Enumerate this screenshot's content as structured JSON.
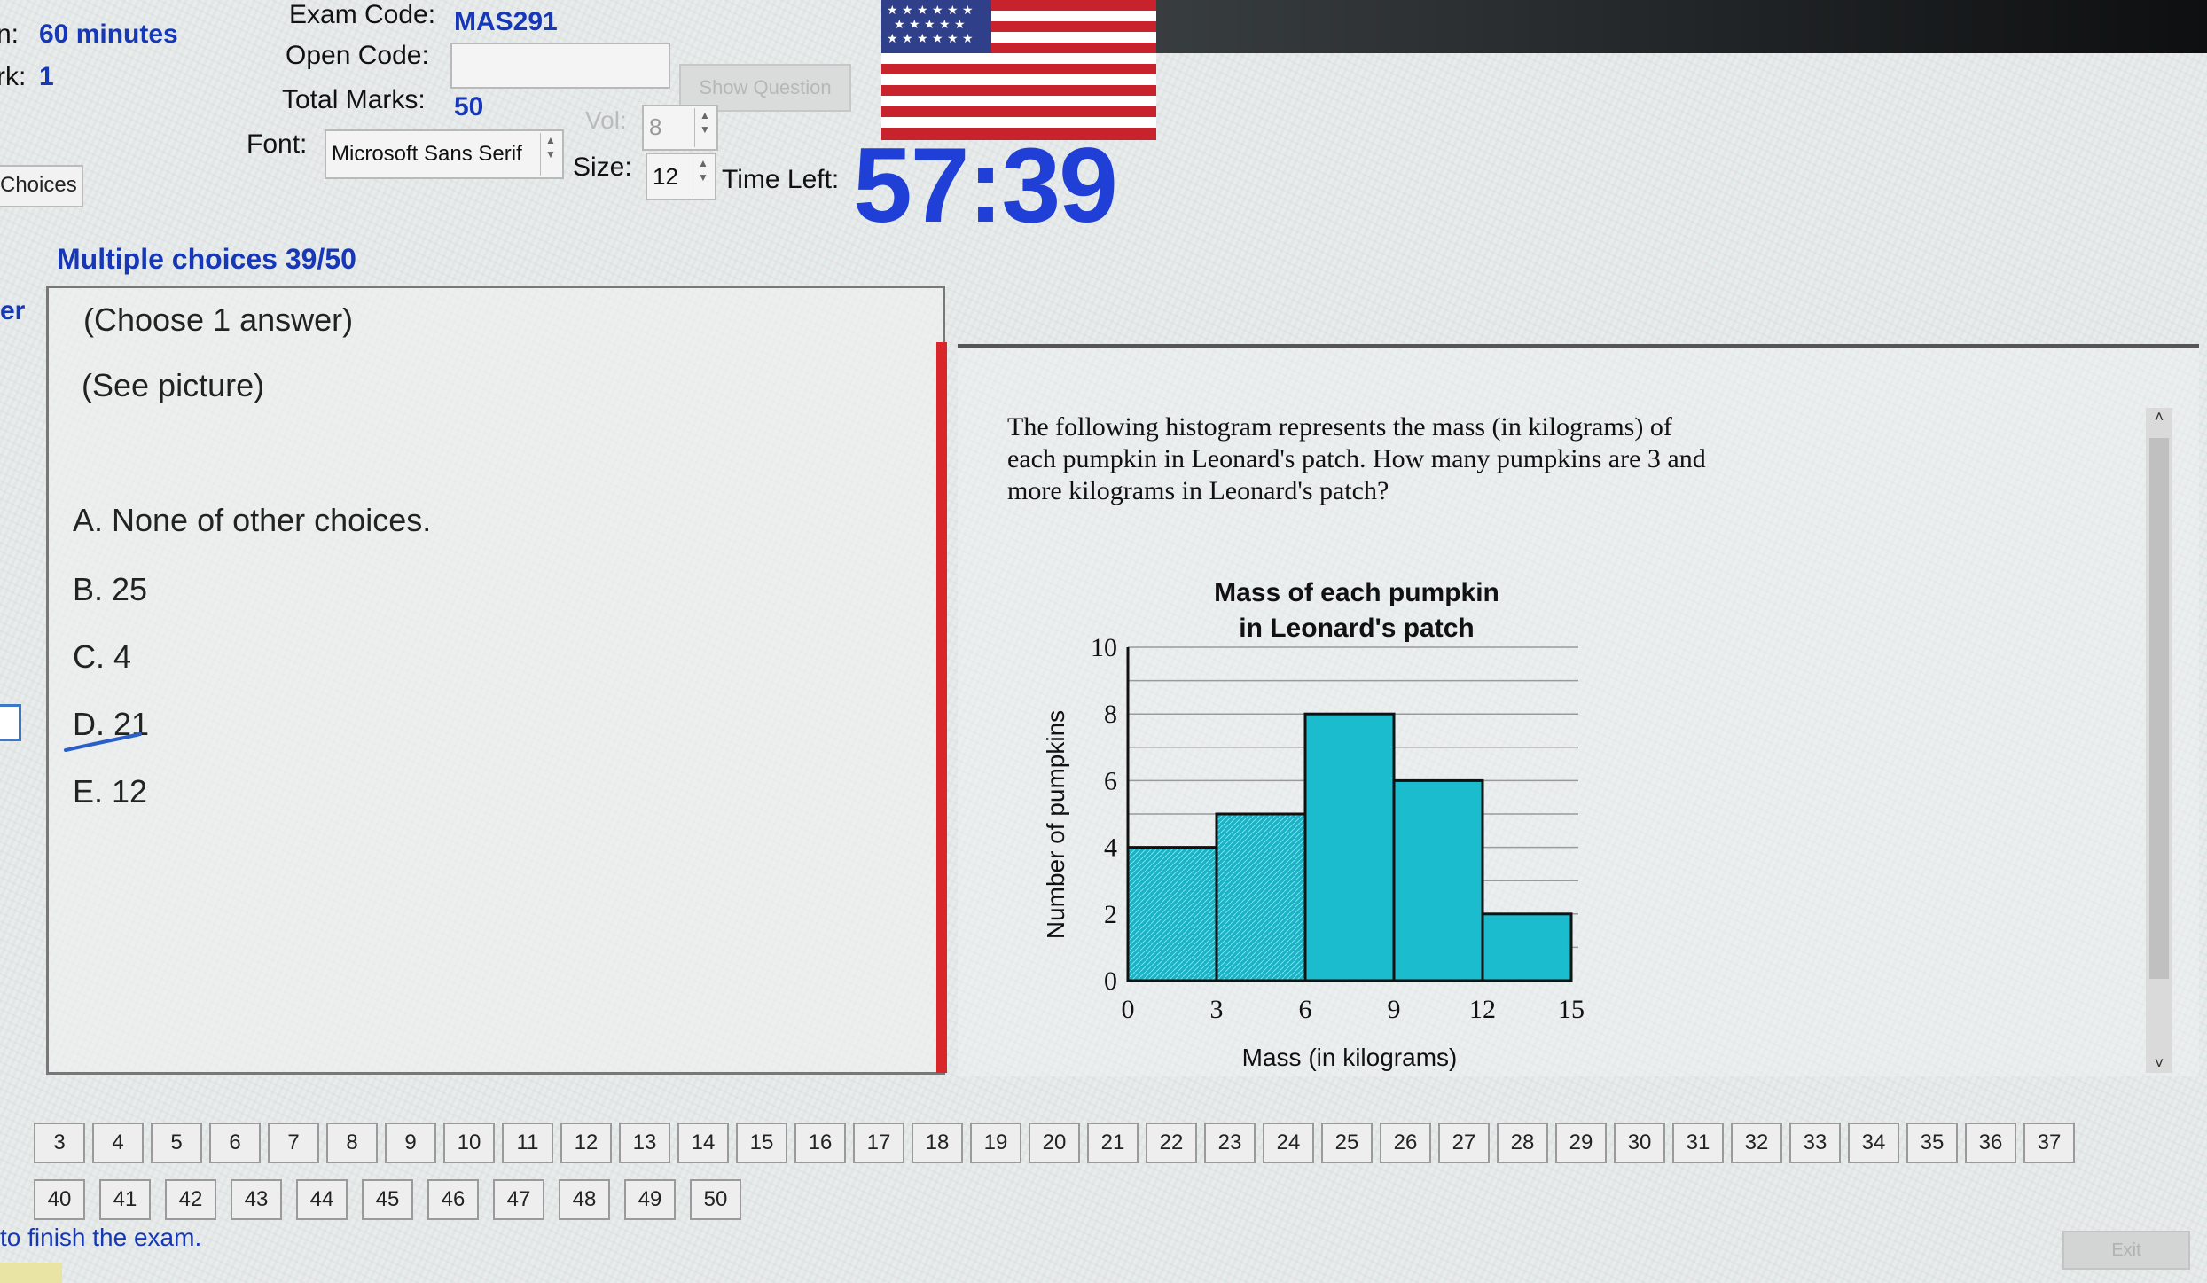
{
  "header": {
    "exam_code_label": "Exam Code:",
    "exam_code_value": "MAS291",
    "duration_label_partial": "n:",
    "duration_value": "60 minutes",
    "mark_label_partial": "rk:",
    "mark_value": "1",
    "open_code_label": "Open Code:",
    "open_code_value": "",
    "show_question_label": "Show Question",
    "total_marks_label": "Total Marks:",
    "total_marks_value": "50",
    "vol_label": "Vol:",
    "vol_value": "8",
    "font_label": "Font:",
    "font_value": "Microsoft Sans Serif",
    "size_label": "Size:",
    "size_value": "12",
    "time_left_label": "Time Left:",
    "time_left_value": "57:39",
    "tab_label_partial": "Choices"
  },
  "question": {
    "title": "Multiple choices 39/50",
    "answer_tab_partial": "er",
    "instruction": "(Choose 1 answer)",
    "see_picture": "(See picture)",
    "choices": [
      {
        "label": "A. None of other choices."
      },
      {
        "label": "B. 25"
      },
      {
        "label": "C. 4"
      },
      {
        "label": "D. 21"
      },
      {
        "label": "E. 12"
      }
    ],
    "prompt": "The following histogram represents the mass (in kilograms) of each pumpkin in Leonard's patch. How many pumpkins are 3 and more kilograms in Leonard's patch?"
  },
  "chart_data": {
    "type": "bar",
    "title_line1": "Mass of each pumpkin",
    "title_line2": "in Leonard's patch",
    "xlabel": "Mass (in kilograms)",
    "ylabel": "Number of pumpkins",
    "bin_edges": [
      0,
      3,
      6,
      9,
      12,
      15
    ],
    "values": [
      4,
      5,
      8,
      6,
      2
    ],
    "x_ticks": [
      "0",
      "3",
      "6",
      "9",
      "12",
      "15"
    ],
    "y_ticks": [
      "0",
      "2",
      "4",
      "6",
      "8",
      "10"
    ],
    "ylim": [
      0,
      10
    ],
    "grid": true,
    "bar_color": "#1cbccf"
  },
  "navigation": {
    "row1": [
      "3",
      "4",
      "5",
      "6",
      "7",
      "8",
      "9",
      "10",
      "11",
      "12",
      "13",
      "14",
      "15",
      "16",
      "17",
      "18",
      "19",
      "20",
      "21",
      "22",
      "23",
      "24",
      "25",
      "26",
      "27",
      "28",
      "29",
      "30",
      "31",
      "32",
      "33",
      "34",
      "35",
      "36",
      "37"
    ],
    "row2": [
      "40",
      "41",
      "42",
      "43",
      "44",
      "45",
      "46",
      "47",
      "48",
      "49",
      "50"
    ]
  },
  "footer": {
    "finish_text_partial": "to finish the exam.",
    "exit_label": "Exit"
  },
  "colors": {
    "accent_blue": "#1537b8",
    "timer_blue": "#1f3fd6",
    "divider_red": "#d8262b"
  }
}
